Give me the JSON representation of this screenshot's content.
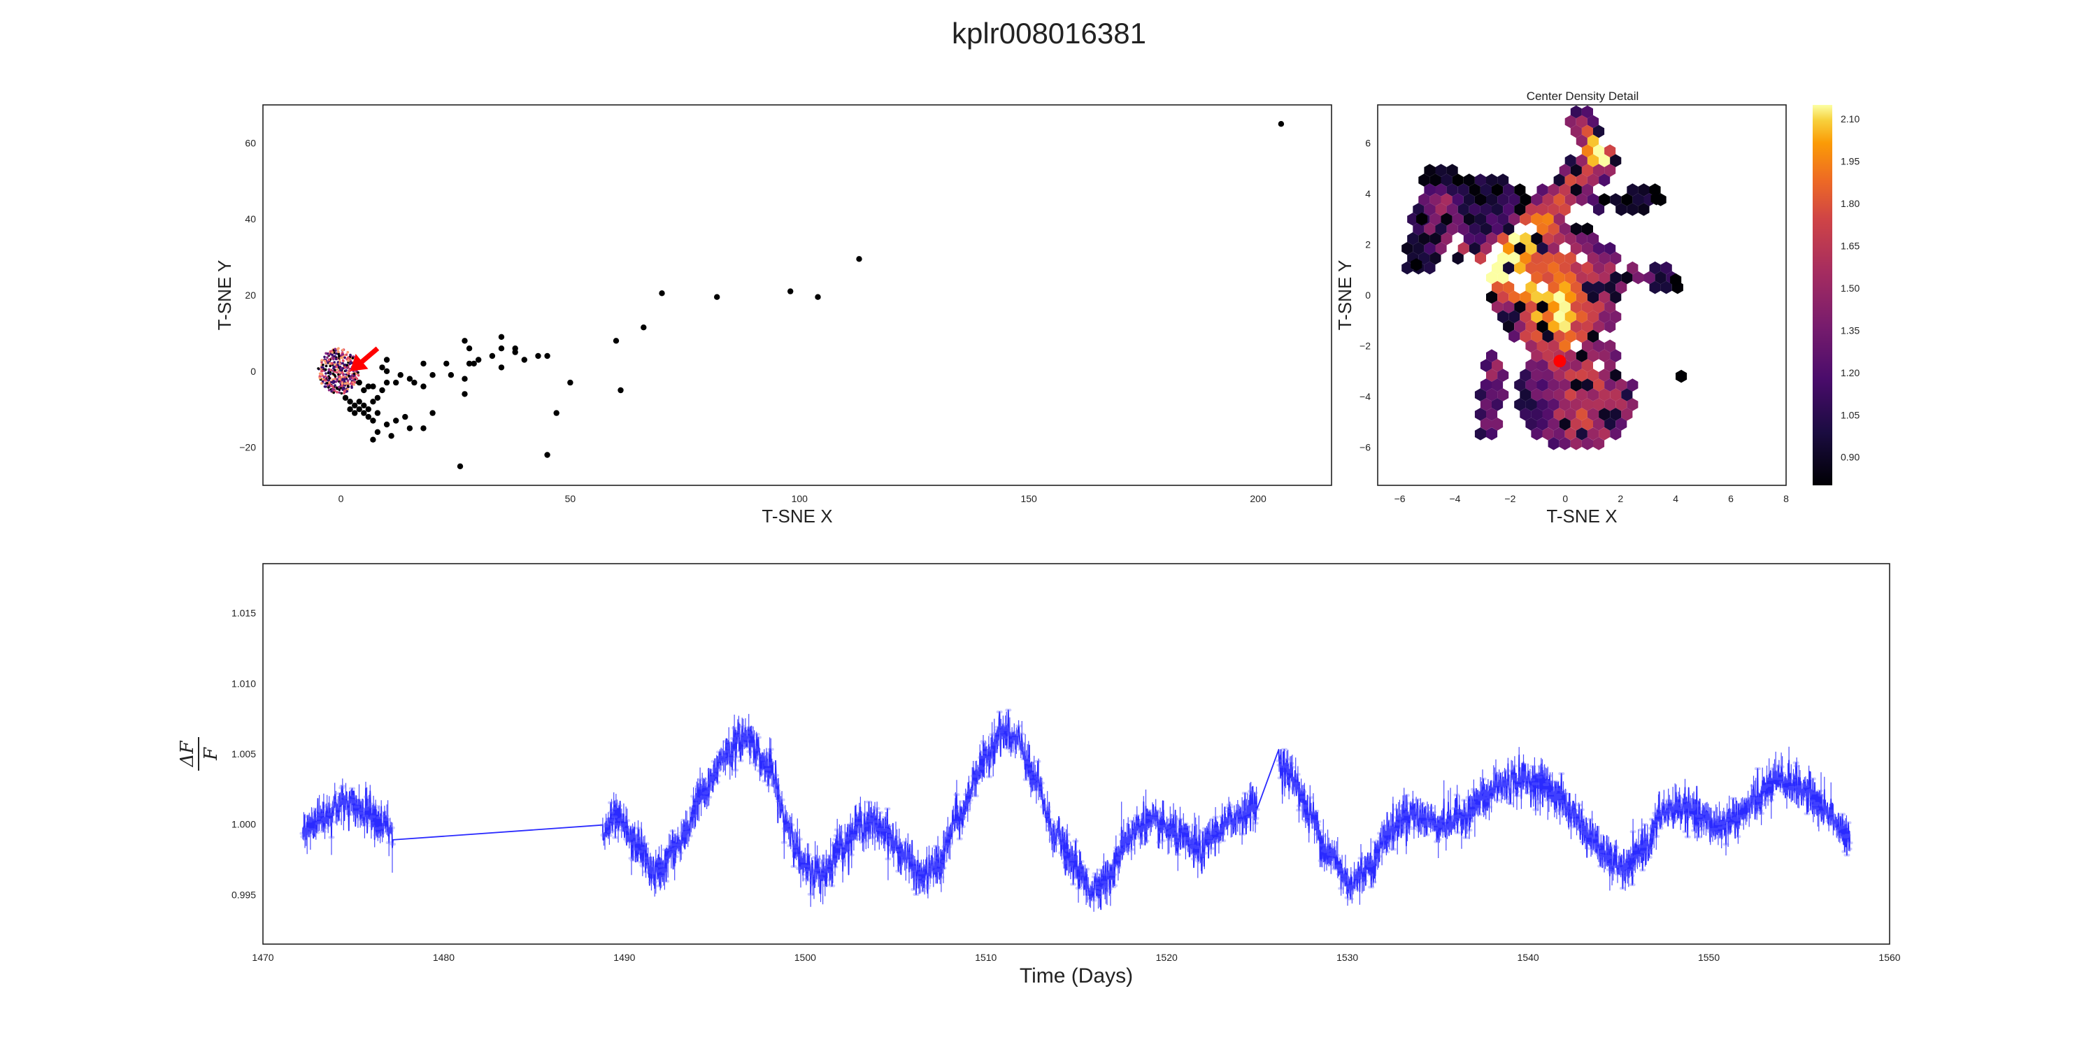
{
  "figure": {
    "title": "kplr008016381"
  },
  "chart_data": [
    {
      "id": "scatter",
      "type": "scatter",
      "xlabel": "T-SNE X",
      "ylabel": "T-SNE Y",
      "xlim": [
        -17,
        216
      ],
      "ylim": [
        -30,
        70
      ],
      "xticks": [
        0,
        50,
        100,
        150,
        200
      ],
      "yticks": [
        -20,
        0,
        20,
        40,
        60
      ],
      "grid": false,
      "point_color": "#000000",
      "outlier_points": [
        [
          205,
          65
        ],
        [
          113,
          29.5
        ],
        [
          98,
          21
        ],
        [
          104,
          19.5
        ],
        [
          82,
          19.5
        ],
        [
          70,
          20.5
        ],
        [
          66,
          11.5
        ],
        [
          60,
          8
        ],
        [
          61,
          -5
        ],
        [
          50,
          -3
        ],
        [
          47,
          -11
        ],
        [
          45,
          4
        ],
        [
          43,
          4
        ],
        [
          45,
          -22
        ],
        [
          40,
          3
        ],
        [
          38,
          6
        ],
        [
          38,
          5
        ],
        [
          35,
          9
        ],
        [
          35,
          6
        ],
        [
          35,
          1
        ],
        [
          33,
          4
        ],
        [
          30,
          3
        ],
        [
          29,
          2
        ],
        [
          28,
          2
        ],
        [
          28,
          6
        ],
        [
          27,
          8
        ],
        [
          27,
          -2
        ],
        [
          27,
          -6
        ],
        [
          24,
          -1
        ],
        [
          23,
          2
        ],
        [
          20,
          -1
        ],
        [
          20,
          -11
        ],
        [
          18,
          -4
        ],
        [
          18,
          2
        ],
        [
          18,
          -15
        ],
        [
          16,
          -3
        ],
        [
          15,
          -2
        ],
        [
          15,
          -15
        ],
        [
          14,
          -12
        ],
        [
          13,
          -1
        ],
        [
          12,
          -3
        ],
        [
          12,
          -13
        ],
        [
          10,
          -14
        ],
        [
          10,
          -3
        ],
        [
          10,
          0
        ],
        [
          10,
          3
        ],
        [
          9,
          1
        ],
        [
          9,
          -5
        ],
        [
          8,
          -7
        ],
        [
          8,
          -11
        ],
        [
          8,
          -16
        ],
        [
          7,
          -18
        ],
        [
          7,
          -13
        ],
        [
          7,
          -8
        ],
        [
          7,
          -4
        ],
        [
          6,
          -10
        ],
        [
          6,
          -12
        ],
        [
          5,
          -9
        ],
        [
          5,
          -11
        ],
        [
          4,
          -10
        ],
        [
          4,
          -8
        ],
        [
          3,
          -9
        ],
        [
          3,
          -11
        ],
        [
          2,
          -8
        ],
        [
          2,
          -10
        ],
        [
          1,
          -7
        ],
        [
          6,
          -4
        ],
        [
          5,
          -5
        ],
        [
          4,
          -3
        ],
        [
          26,
          -25
        ],
        [
          11,
          -17
        ]
      ],
      "highlight_arrow": {
        "color": "#ff0000",
        "from": [
          8,
          6
        ],
        "to": [
          2,
          0
        ]
      },
      "center_cluster": {
        "colors": [
          "#3b0f70",
          "#8c2981",
          "#de4968",
          "#fe9f6d",
          "#000004"
        ],
        "x_range": [
          -5,
          4
        ],
        "y_range": [
          -6,
          6
        ]
      }
    },
    {
      "id": "density",
      "type": "heatmap",
      "title": "Center Density Detail",
      "xlabel": "T-SNE X",
      "ylabel": "T-SNE Y",
      "xlim": [
        -6.8,
        8
      ],
      "ylim": [
        -7.5,
        7.5
      ],
      "xticks": [
        -6,
        -4,
        -2,
        0,
        2,
        4,
        6,
        8
      ],
      "yticks": [
        -6,
        -4,
        -2,
        0,
        2,
        4,
        6
      ],
      "colormap": "inferno",
      "highlight_point": {
        "x": -0.2,
        "y": -2.6,
        "color": "#ff0000"
      },
      "colorbar": {
        "range": [
          0.8,
          2.15
        ],
        "ticks": [
          0.9,
          1.05,
          1.2,
          1.35,
          1.5,
          1.65,
          1.8,
          1.95,
          2.1
        ]
      }
    },
    {
      "id": "lightcurve",
      "type": "line",
      "xlabel": "Time (Days)",
      "ylabel_tex": [
        "ΔF",
        "F"
      ],
      "xlim": [
        1470,
        1560
      ],
      "ylim": [
        0.9915,
        1.0185
      ],
      "xticks": [
        1470,
        1480,
        1490,
        1500,
        1510,
        1520,
        1530,
        1540,
        1550,
        1560
      ],
      "yticks": [
        0.995,
        1.0,
        1.005,
        1.01,
        1.015
      ],
      "line_color": "#2a2aff",
      "segments": [
        {
          "t_start": 1472.2,
          "t_end": 1477.2
        },
        {
          "t_start": 1488.8,
          "t_end": 1525.0
        },
        {
          "t_start": 1526.2,
          "t_end": 1557.8
        }
      ],
      "anchors": [
        [
          1472.2,
          0.9995
        ],
        [
          1473.2,
          1.0005
        ],
        [
          1474.5,
          1.0015
        ],
        [
          1475.8,
          1.001
        ],
        [
          1476.7,
          1.0
        ],
        [
          1477.2,
          0.999
        ],
        [
          1488.8,
          0.9993
        ],
        [
          1489.5,
          1.0003
        ],
        [
          1490.7,
          0.9985
        ],
        [
          1491.7,
          0.9965
        ],
        [
          1493.0,
          0.9985
        ],
        [
          1494.3,
          1.002
        ],
        [
          1495.7,
          1.0052
        ],
        [
          1496.8,
          1.0062
        ],
        [
          1498.0,
          1.004
        ],
        [
          1499.0,
          1.0
        ],
        [
          1500.0,
          0.9968
        ],
        [
          1501.0,
          0.9965
        ],
        [
          1502.0,
          0.9985
        ],
        [
          1503.3,
          1.0002
        ],
        [
          1504.3,
          0.9998
        ],
        [
          1505.3,
          0.998
        ],
        [
          1506.5,
          0.9962
        ],
        [
          1507.3,
          0.997
        ],
        [
          1508.5,
          1.0005
        ],
        [
          1509.7,
          1.004
        ],
        [
          1510.8,
          1.0065
        ],
        [
          1511.8,
          1.0058
        ],
        [
          1512.7,
          1.003
        ],
        [
          1513.8,
          0.9995
        ],
        [
          1514.8,
          0.9972
        ],
        [
          1515.8,
          0.9955
        ],
        [
          1516.8,
          0.9962
        ],
        [
          1517.8,
          0.999
        ],
        [
          1518.8,
          1.0002
        ],
        [
          1519.8,
          0.9998
        ],
        [
          1520.8,
          0.999
        ],
        [
          1521.8,
          0.998
        ],
        [
          1522.8,
          0.9995
        ],
        [
          1523.8,
          1.0005
        ],
        [
          1525.0,
          1.0013
        ],
        [
          1526.2,
          1.0045
        ],
        [
          1527.0,
          1.0032
        ],
        [
          1528.0,
          1.0005
        ],
        [
          1529.0,
          0.9978
        ],
        [
          1530.2,
          0.9958
        ],
        [
          1531.3,
          0.9972
        ],
        [
          1532.3,
          0.9995
        ],
        [
          1533.5,
          1.0008
        ],
        [
          1534.5,
          1.0003
        ],
        [
          1535.5,
          1.0
        ],
        [
          1536.5,
          1.0008
        ],
        [
          1537.5,
          1.0018
        ],
        [
          1538.5,
          1.0028
        ],
        [
          1539.5,
          1.0032
        ],
        [
          1540.5,
          1.003
        ],
        [
          1541.5,
          1.0022
        ],
        [
          1542.5,
          1.0008
        ],
        [
          1543.5,
          0.999
        ],
        [
          1544.5,
          0.9975
        ],
        [
          1545.5,
          0.9968
        ],
        [
          1546.5,
          0.9985
        ],
        [
          1547.5,
          1.0008
        ],
        [
          1548.5,
          1.0012
        ],
        [
          1549.5,
          1.0005
        ],
        [
          1550.5,
          0.9998
        ],
        [
          1551.5,
          1.0005
        ],
        [
          1552.5,
          1.0015
        ],
        [
          1553.5,
          1.0028
        ],
        [
          1554.5,
          1.003
        ],
        [
          1555.5,
          1.0022
        ],
        [
          1556.5,
          1.001
        ],
        [
          1557.8,
          0.9988
        ]
      ]
    }
  ]
}
